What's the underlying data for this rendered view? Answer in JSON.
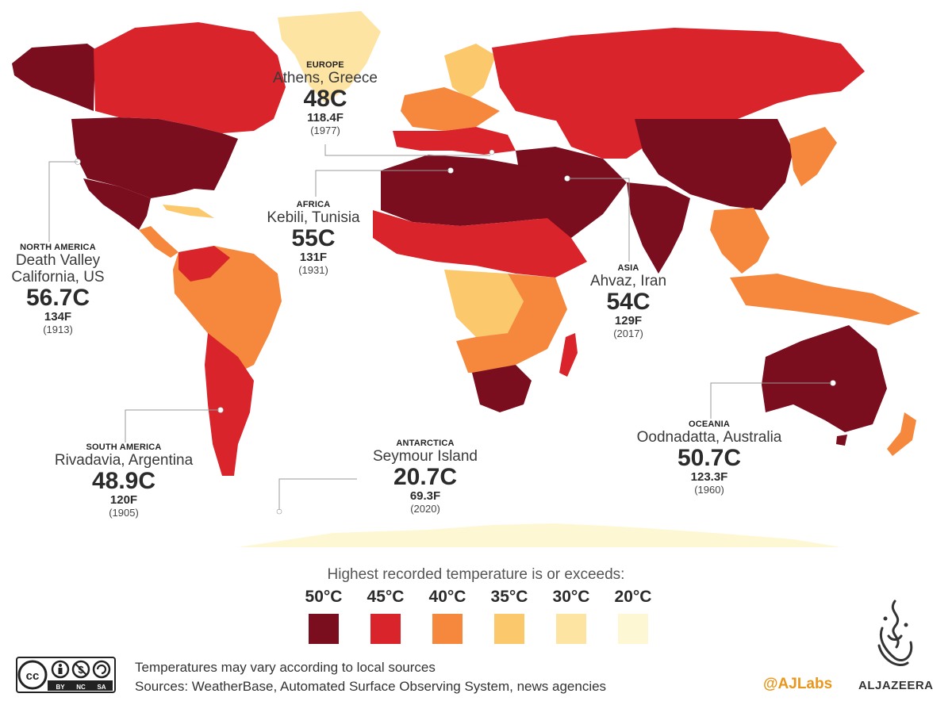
{
  "callouts": [
    {
      "region": "EUROPE",
      "place": "Athens, Greece",
      "celsius": "48C",
      "fahrenheit": "118.4F",
      "year": "(1977)"
    },
    {
      "region": "AFRICA",
      "place": "Kebili, Tunisia",
      "celsius": "55C",
      "fahrenheit": "131F",
      "year": "(1931)"
    },
    {
      "region": "NORTH AMERICA",
      "place1": "Death Valley",
      "place2": "California, US",
      "celsius": "56.7C",
      "fahrenheit": "134F",
      "year": "(1913)"
    },
    {
      "region": "ASIA",
      "place": "Ahvaz, Iran",
      "celsius": "54C",
      "fahrenheit": "129F",
      "year": "(2017)"
    },
    {
      "region": "OCEANIA",
      "place": "Oodnadatta, Australia",
      "celsius": "50.7C",
      "fahrenheit": "123.3F",
      "year": "(1960)"
    },
    {
      "region": "SOUTH AMERICA",
      "place": "Rivadavia, Argentina",
      "celsius": "48.9C",
      "fahrenheit": "120F",
      "year": "(1905)"
    },
    {
      "region": "ANTARCTICA",
      "place": "Seymour Island",
      "celsius": "20.7C",
      "fahrenheit": "69.3F",
      "year": "(2020)"
    }
  ],
  "legend": {
    "title": "Highest recorded temperature is or exceeds:",
    "items": [
      {
        "label": "50°C",
        "color": "#7a0d1e"
      },
      {
        "label": "45°C",
        "color": "#d9242b"
      },
      {
        "label": "40°C",
        "color": "#f5883c"
      },
      {
        "label": "35°C",
        "color": "#fcc86c"
      },
      {
        "label": "30°C",
        "color": "#fde4a3"
      },
      {
        "label": "20°C",
        "color": "#fef7d4"
      }
    ]
  },
  "notes": {
    "line1": "Temperatures may vary according to local sources",
    "line2": "Sources: WeatherBase, Automated Surface Observing System, news agencies"
  },
  "license": {
    "cc": "cc",
    "by": "BY",
    "nc": "NC",
    "sa": "SA"
  },
  "brand": {
    "handle": "@AJLabs",
    "name": "ALJAZEERA"
  }
}
